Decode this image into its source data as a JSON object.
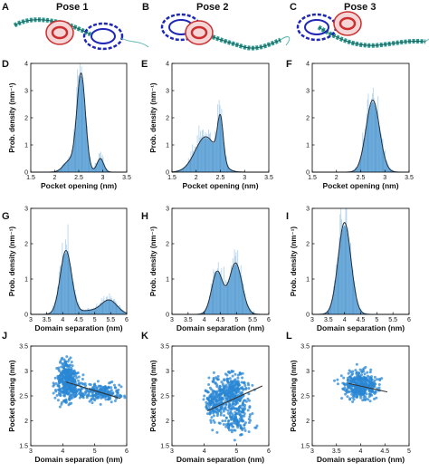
{
  "figure": {
    "poses": [
      {
        "letter": "A",
        "title": "Pose 1"
      },
      {
        "letter": "B",
        "title": "Pose 2"
      },
      {
        "letter": "C",
        "title": "Pose 3"
      }
    ],
    "colors": {
      "fill": "#5b9fd4",
      "fill_light": "#b5d5ef",
      "curve": "#1f2f3f",
      "scatter": "#2a87d4",
      "protein_blue": "#1f27b6",
      "protein_red": "#cc2f2f",
      "protein_teal": "#2c9a90"
    }
  },
  "chart_data": [
    {
      "panel": "D",
      "type": "histogram",
      "xlabel": "Pocket opening (nm)",
      "ylabel": "Prob. density (nm⁻¹)",
      "xlim": [
        1.5,
        3.5
      ],
      "ylim": [
        0,
        4
      ],
      "xticks": [
        "1.5",
        "2",
        "2.5",
        "3",
        "3.5"
      ],
      "yticks": [
        "0",
        "1",
        "2",
        "3",
        "4"
      ],
      "peaks": [
        [
          2.55,
          3.6,
          0.09
        ],
        [
          2.95,
          0.5,
          0.07
        ],
        [
          2.3,
          0.4,
          0.12
        ]
      ]
    },
    {
      "panel": "E",
      "type": "histogram",
      "xlabel": "Pocket opening (nm)",
      "ylabel": "Prob. density (nm⁻¹)",
      "xlim": [
        1.5,
        3.5
      ],
      "ylim": [
        0,
        4
      ],
      "xticks": [
        "1.5",
        "2",
        "2.5",
        "3",
        "3.5"
      ],
      "yticks": [
        "0",
        "1",
        "2",
        "3",
        "4"
      ],
      "peaks": [
        [
          2.5,
          1.6,
          0.06
        ],
        [
          2.2,
          1.3,
          0.22
        ]
      ]
    },
    {
      "panel": "F",
      "type": "histogram",
      "xlabel": "Pocket opening (nm)",
      "ylabel": "",
      "xlim": [
        1.5,
        3.5
      ],
      "ylim": [
        0,
        4
      ],
      "xticks": [
        "1.5",
        "2",
        "2.5",
        "3",
        "3.5"
      ],
      "yticks": [
        "0",
        "1",
        "2",
        "3",
        "4"
      ],
      "peaks": [
        [
          2.75,
          2.65,
          0.14
        ]
      ]
    },
    {
      "panel": "G",
      "type": "histogram",
      "xlabel": "Domain separation (nm)",
      "ylabel": "Prob. density (nm⁻¹)",
      "xlim": [
        3,
        6
      ],
      "ylim": [
        0,
        3
      ],
      "xticks": [
        "3",
        "3.5",
        "4",
        "4.5",
        "5",
        "5.5",
        "6"
      ],
      "yticks": [
        "0",
        "1",
        "2",
        "3"
      ],
      "peaks": [
        [
          4.1,
          1.8,
          0.18
        ],
        [
          5.45,
          0.4,
          0.25
        ],
        [
          4.8,
          0.1,
          0.3
        ]
      ]
    },
    {
      "panel": "H",
      "type": "histogram",
      "xlabel": "Domain separation (nm)",
      "ylabel": "Prob. density (nm⁻¹)",
      "xlim": [
        3,
        6
      ],
      "ylim": [
        0,
        3
      ],
      "xticks": [
        "3",
        "3.5",
        "4",
        "4.5",
        "5",
        "5.5",
        "6"
      ],
      "yticks": [
        "0",
        "1",
        "2",
        "3"
      ],
      "peaks": [
        [
          4.4,
          1.2,
          0.17
        ],
        [
          4.97,
          1.45,
          0.2
        ]
      ]
    },
    {
      "panel": "I",
      "type": "histogram",
      "xlabel": "Domain separation (nm)",
      "ylabel": "Prob. density (nm⁻¹)",
      "xlim": [
        3,
        6
      ],
      "ylim": [
        0,
        3
      ],
      "xticks": [
        "3",
        "3.5",
        "4",
        "4.5",
        "5",
        "5.5",
        "6"
      ],
      "yticks": [
        "0",
        "1",
        "2",
        "3"
      ],
      "peaks": [
        [
          4.0,
          2.6,
          0.2
        ]
      ]
    },
    {
      "panel": "J",
      "type": "scatter",
      "xlabel": "Domain separation (nm)",
      "ylabel": "Pocket opening (nm)",
      "xlim": [
        3,
        6
      ],
      "ylim": [
        1.5,
        3.5
      ],
      "xticks": [
        "3",
        "4",
        "5",
        "6"
      ],
      "yticks": [
        "1.5",
        "2",
        "2.5",
        "3",
        "3.5"
      ],
      "clusters": [
        [
          4.15,
          2.75,
          0.18,
          0.18,
          320
        ],
        [
          4.1,
          3.05,
          0.08,
          0.12,
          60
        ],
        [
          5.3,
          2.55,
          0.3,
          0.08,
          160
        ],
        [
          4.7,
          2.6,
          0.3,
          0.08,
          80
        ]
      ],
      "fit_line": [
        [
          4.1,
          2.78
        ],
        [
          5.8,
          2.45
        ]
      ]
    },
    {
      "panel": "K",
      "type": "scatter",
      "xlabel": "Domain separation (nm)",
      "ylabel": "Pocket opening (nm)",
      "xlim": [
        3,
        6
      ],
      "ylim": [
        1.5,
        3.5
      ],
      "xticks": [
        "3",
        "4",
        "5",
        "6"
      ],
      "yticks": [
        "1.5",
        "2",
        "2.5",
        "3",
        "3.5"
      ],
      "clusters": [
        [
          4.35,
          2.4,
          0.15,
          0.2,
          200
        ],
        [
          4.9,
          2.6,
          0.25,
          0.18,
          260
        ],
        [
          5.05,
          2.05,
          0.2,
          0.15,
          150
        ]
      ],
      "fit_line": [
        [
          4.1,
          2.2
        ],
        [
          5.8,
          2.7
        ]
      ]
    },
    {
      "panel": "L",
      "type": "scatter",
      "xlabel": "Domain separation (nm)",
      "ylabel": "Pocket opening (nm)",
      "xlim": [
        3,
        5
      ],
      "ylim": [
        1.5,
        3.5
      ],
      "xticks": [
        "3",
        "3.5",
        "4",
        "4.5",
        "5"
      ],
      "yticks": [
        "1.5",
        "2",
        "2.5",
        "3",
        "3.5"
      ],
      "clusters": [
        [
          4.0,
          2.7,
          0.17,
          0.13,
          400
        ]
      ],
      "fit_line": [
        [
          3.75,
          2.75
        ],
        [
          4.55,
          2.58
        ]
      ]
    }
  ]
}
